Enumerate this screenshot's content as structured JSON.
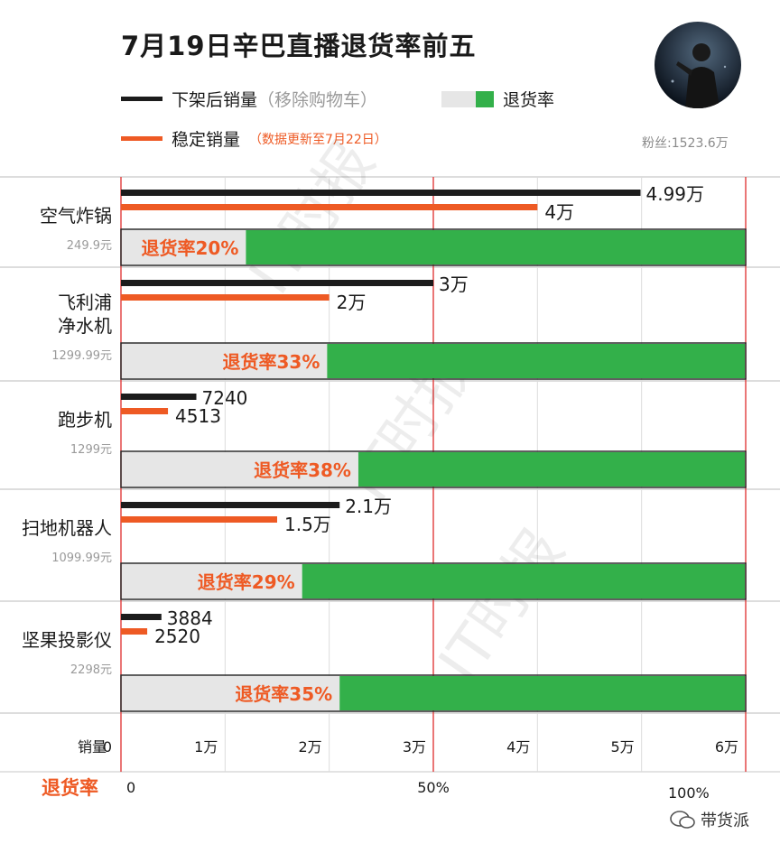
{
  "header": {
    "title": "7月19日辛巴直播退货率前五",
    "legend_black_label": "下架后销量",
    "legend_black_note": "（移除购物车）",
    "legend_return_label": "退货率",
    "legend_orange_label": "稳定销量",
    "legend_orange_note": "（数据更新至7月22日）",
    "fans": "粉丝:1523.6万"
  },
  "chart_data": {
    "type": "bar",
    "colors": {
      "removed": "#1c1c1c",
      "stable": "#ee5a24",
      "return_green": "#33b04a",
      "return_gray": "#e6e6e6",
      "grid_red": "#e23c3c"
    },
    "categories": [
      {
        "name_lines": [
          "空气炸锅"
        ],
        "price": "249.9元",
        "removed": 49900,
        "removed_label": "4.99万",
        "stable": 40000,
        "stable_label": "4万",
        "return_rate": 20,
        "return_label": "退货率20%"
      },
      {
        "name_lines": [
          "飞利浦",
          "净水机"
        ],
        "price": "1299.99元",
        "removed": 30000,
        "removed_label": "3万",
        "stable": 20000,
        "stable_label": "2万",
        "return_rate": 33,
        "return_label": "退货率33%"
      },
      {
        "name_lines": [
          "跑步机"
        ],
        "price": "1299元",
        "removed": 7240,
        "removed_label": "7240",
        "stable": 4513,
        "stable_label": "4513",
        "return_rate": 38,
        "return_label": "退货率38%"
      },
      {
        "name_lines": [
          "扫地机器人"
        ],
        "price": "1099.99元",
        "removed": 21000,
        "removed_label": "2.1万",
        "stable": 15000,
        "stable_label": "1.5万",
        "return_rate": 29,
        "return_label": "退货率29%"
      },
      {
        "name_lines": [
          "坚果投影仪"
        ],
        "price": "2298元",
        "removed": 3884,
        "removed_label": "3884",
        "stable": 2520,
        "stable_label": "2520",
        "return_rate": 35,
        "return_label": "退货率35%"
      }
    ],
    "sales_axis": {
      "label": "销量",
      "ticks": [
        "0",
        "1万",
        "2万",
        "3万",
        "4万",
        "5万",
        "6万"
      ],
      "range": [
        0,
        60000
      ]
    },
    "return_axis": {
      "label": "退货率",
      "ticks": [
        "0",
        "50%",
        "100%"
      ],
      "range": [
        0,
        100
      ]
    },
    "watermark": "IT时报"
  },
  "footer": {
    "brand": "带货派"
  }
}
